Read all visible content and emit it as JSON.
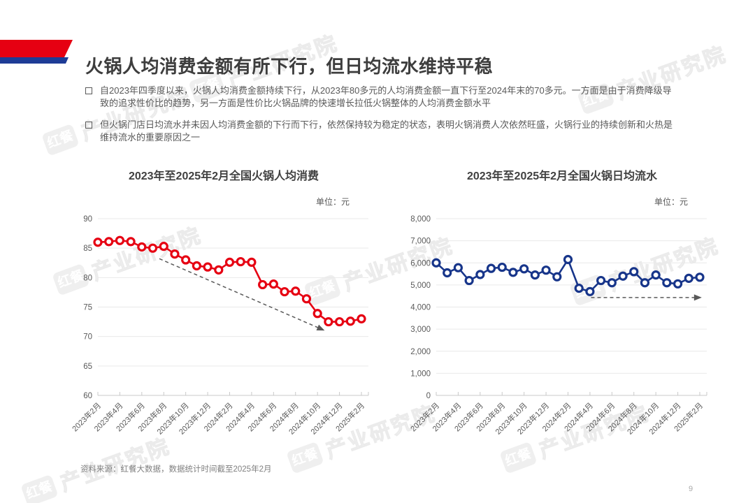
{
  "page": {
    "title": "火锅人均消费金额有所下行，但日均流水维持平稳",
    "bullets": [
      "自2023年四季度以来，火锅人均消费金额持续下行，从2023年80多元的人均消费金额一直下行至2024年末的70多元。一方面是由于消费降级导致的追求性价比的趋势，另一方面是性价比火锅品牌的快速增长拉低火锅整体的人均消费金额水平",
      "但火锅门店日均流水并未因人均消费金额的下行而下行，依然保持较为稳定的状态，表明火锅消费人次依然旺盛，火锅行业的持续创新和火热是维持流水的重要原因之一"
    ],
    "source": "资料来源：红餐大数据，数据统计时间截至2025年2月",
    "page_number": "9",
    "watermark": {
      "logo": "红餐",
      "text": "产业研究院"
    }
  },
  "colors": {
    "ribbon_red": "#e60012",
    "ribbon_blue": "#1e3c96",
    "series_red": "#e60012",
    "series_blue": "#17358a",
    "grid": "#e9e9e9",
    "axis": "#c9c9c9",
    "text_gray": "#595959"
  },
  "chart_data": [
    {
      "type": "line",
      "title": "2023年至2025年2月全国火锅人均消费",
      "unit_label": "单位：元",
      "legend_position": "none",
      "grid": true,
      "color": "#e60012",
      "marker": "open-circle",
      "ylim": [
        60,
        90
      ],
      "ytick_values": [
        60,
        65,
        70,
        75,
        80,
        85,
        90
      ],
      "ytick_labels": [
        "60",
        "65",
        "70",
        "75",
        "80",
        "85",
        "90"
      ],
      "x_tick_labels": [
        "2023年2月",
        "2023年4月",
        "2023年6月",
        "2023年8月",
        "2023年10月",
        "2023年12月",
        "2024年2月",
        "2024年4月",
        "2024年6月",
        "2024年8月",
        "2024年10月",
        "2024年12月",
        "2025年2月"
      ],
      "x_months": [
        "2023年2月",
        "2023年3月",
        "2023年4月",
        "2023年5月",
        "2023年6月",
        "2023年7月",
        "2023年8月",
        "2023年9月",
        "2023年10月",
        "2023年11月",
        "2023年12月",
        "2024年1月",
        "2024年2月",
        "2024年3月",
        "2024年4月",
        "2024年5月",
        "2024年6月",
        "2024年7月",
        "2024年8月",
        "2024年9月",
        "2024年10月",
        "2024年11月",
        "2024年12月",
        "2025年1月",
        "2025年2月"
      ],
      "values": [
        86,
        86.1,
        86.3,
        86.1,
        85.2,
        85,
        85.3,
        84,
        83,
        82,
        81.8,
        81.3,
        82.6,
        82.7,
        82.6,
        78.8,
        78.9,
        77.6,
        77.7,
        76.4,
        73.9,
        72.5,
        72.5,
        72.6,
        73
      ],
      "trend_arrow": {
        "style": "dashed",
        "direction": "down",
        "from": {
          "x_index": 5.6,
          "value": 83.2
        },
        "to": {
          "x_index": 20.3,
          "value": 71.3
        }
      }
    },
    {
      "type": "line",
      "title": "2023年至2025年2月全国火锅日均流水",
      "unit_label": "单位：元",
      "legend_position": "none",
      "grid": true,
      "color": "#17358a",
      "marker": "open-circle",
      "ylim": [
        0,
        8000
      ],
      "ytick_values": [
        0,
        1000,
        2000,
        3000,
        4000,
        5000,
        6000,
        7000,
        8000
      ],
      "ytick_labels": [
        "0",
        "1,000",
        "2,000",
        "3,000",
        "4,000",
        "5,000",
        "6,000",
        "7,000",
        "8,000"
      ],
      "x_tick_labels": [
        "2023年2月",
        "2023年4月",
        "2023年6月",
        "2023年8月",
        "2023年10月",
        "2023年12月",
        "2024年2月",
        "2024年4月",
        "2024年6月",
        "2024年8月",
        "2024年10月",
        "2024年12月",
        "2025年2月"
      ],
      "x_months": [
        "2023年2月",
        "2023年3月",
        "2023年4月",
        "2023年5月",
        "2023年6月",
        "2023年7月",
        "2023年8月",
        "2023年9月",
        "2023年10月",
        "2023年11月",
        "2023年12月",
        "2024年1月",
        "2024年2月",
        "2024年3月",
        "2024年4月",
        "2024年5月",
        "2024年6月",
        "2024年7月",
        "2024年8月",
        "2024年9月",
        "2024年10月",
        "2024年11月",
        "2024年12月",
        "2025年1月",
        "2025年2月"
      ],
      "values": [
        6000,
        5550,
        5780,
        5200,
        5470,
        5750,
        5800,
        5570,
        5730,
        5450,
        5670,
        5370,
        6150,
        4850,
        4700,
        5200,
        5100,
        5400,
        5600,
        5100,
        5450,
        5100,
        5050,
        5300,
        5350
      ],
      "trend_arrow": {
        "style": "dashed",
        "direction": "flat",
        "from": {
          "x_index": 14.1,
          "value": 4430
        },
        "to": {
          "x_index": 23.8,
          "value": 4430
        }
      }
    }
  ]
}
